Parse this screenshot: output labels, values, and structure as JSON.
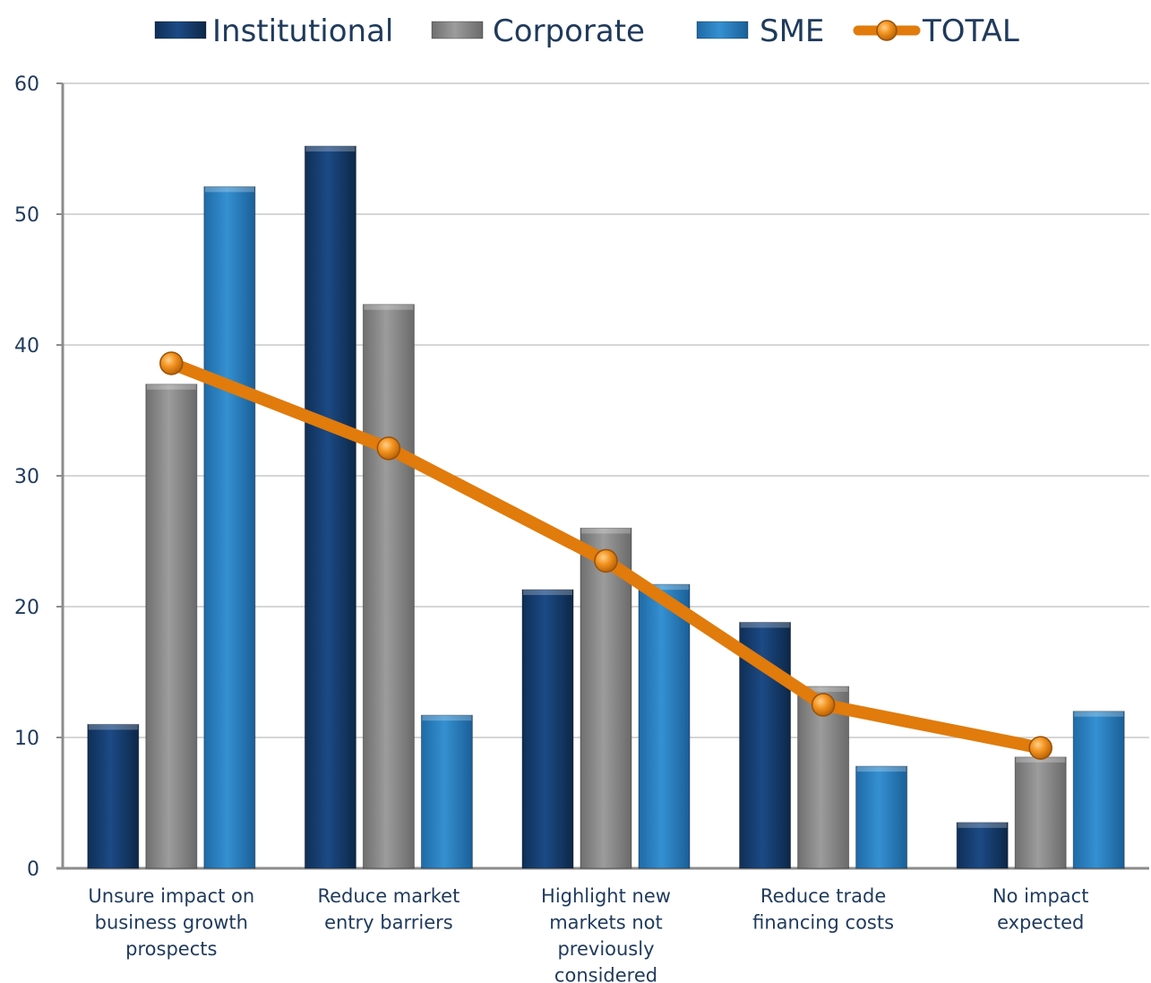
{
  "chart_data": {
    "type": "bar",
    "title": "",
    "xlabel": "",
    "ylabel": "",
    "ylim": [
      0,
      60
    ],
    "yticks": [
      0,
      10,
      20,
      30,
      40,
      50,
      60
    ],
    "grid": true,
    "legend_position": "top",
    "categories": [
      [
        "Unsure impact on",
        "business growth",
        "prospects"
      ],
      [
        "Reduce market",
        "entry barriers"
      ],
      [
        "Highlight new",
        "markets not",
        "previously",
        "considered"
      ],
      [
        "Reduce trade",
        "financing costs"
      ],
      [
        "No impact",
        "expected"
      ]
    ],
    "series": [
      {
        "name": "Institutional",
        "kind": "bar",
        "color": "#163f72",
        "values": [
          11,
          55.2,
          21.3,
          18.8,
          3.5
        ]
      },
      {
        "name": "Corporate",
        "kind": "bar",
        "color": "#8a8a8a",
        "values": [
          37,
          43.1,
          26,
          13.9,
          8.5
        ]
      },
      {
        "name": "SME",
        "kind": "bar",
        "color": "#2a7fc0",
        "values": [
          52.1,
          11.7,
          21.7,
          7.8,
          12
        ]
      },
      {
        "name": "TOTAL",
        "kind": "line",
        "color": "#e07b0c",
        "values": [
          38.6,
          32.1,
          23.5,
          12.5,
          9.2
        ]
      }
    ]
  }
}
